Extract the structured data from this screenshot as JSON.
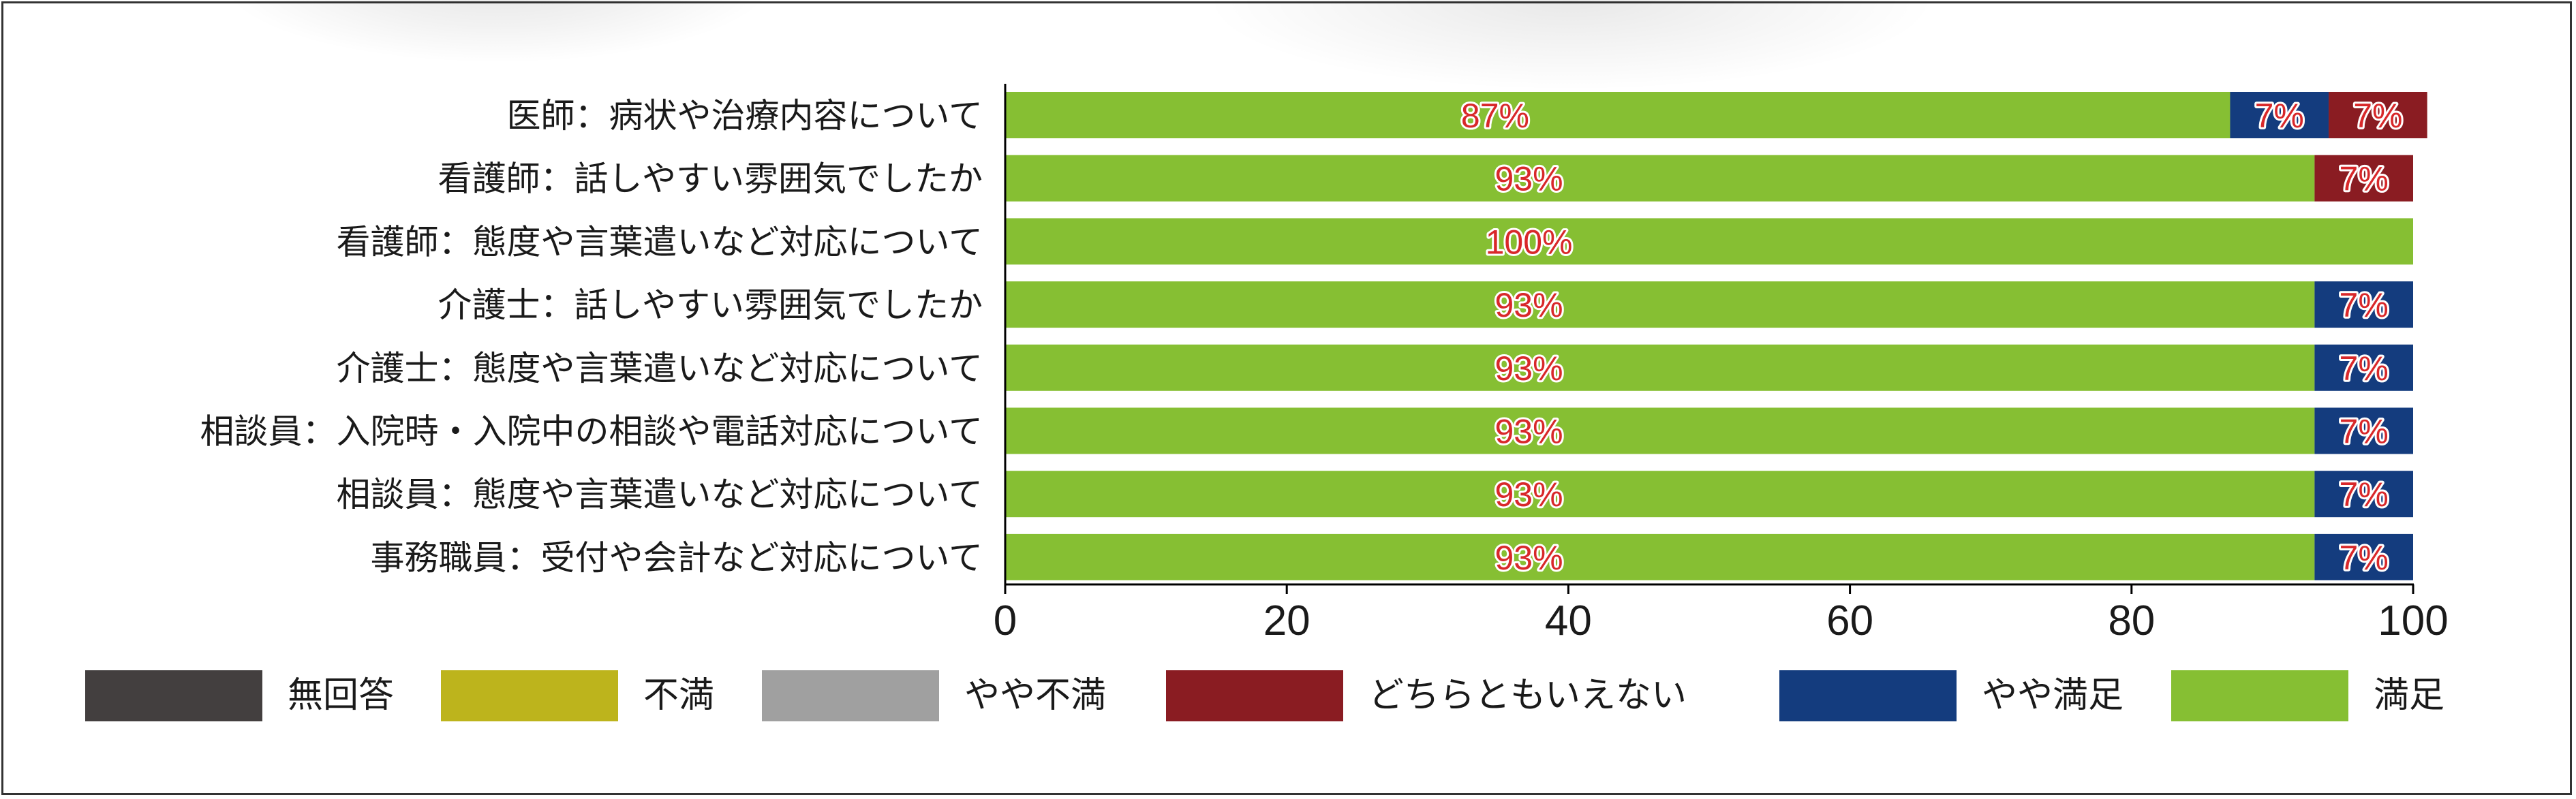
{
  "chart_data": {
    "type": "bar",
    "orientation": "horizontal",
    "stacked": true,
    "categories": [
      "医師：病状や治療内容について",
      "看護師：話しやすい雰囲気でしたか",
      "看護師：態度や言葉遣いなど対応について",
      "介護士：話しやすい雰囲気でしたか",
      "介護士：態度や言葉遣いなど対応について",
      "相談員：入院時・入院中の相談や電話対応について",
      "相談員：態度や言葉遣いなど対応について",
      "事務職員：受付や会計など対応について"
    ],
    "series": [
      {
        "name": "満足",
        "color": "#86bf33",
        "values": [
          87,
          93,
          100,
          93,
          93,
          93,
          93,
          93
        ],
        "labels": [
          "87%",
          "93%",
          "100%",
          "93%",
          "93%",
          "93%",
          "93%",
          "93%"
        ]
      },
      {
        "name": "やや満足",
        "color": "#143c7e",
        "values": [
          7,
          0,
          0,
          7,
          7,
          7,
          7,
          7
        ],
        "labels": [
          "7%",
          "",
          "",
          "7%",
          "7%",
          "7%",
          "7%",
          "7%"
        ]
      },
      {
        "name": "どちらともいえない",
        "color": "#8a1c22",
        "values": [
          7,
          7,
          0,
          0,
          0,
          0,
          0,
          0
        ],
        "labels": [
          "7%",
          "7%",
          "",
          "",
          "",
          "",
          "",
          ""
        ]
      },
      {
        "name": "やや不満",
        "color": "#a0a0a0",
        "values": [
          0,
          0,
          0,
          0,
          0,
          0,
          0,
          0
        ],
        "labels": [
          "",
          "",
          "",
          "",
          "",
          "",
          "",
          ""
        ]
      },
      {
        "name": "不満",
        "color": "#bdb41c",
        "values": [
          0,
          0,
          0,
          0,
          0,
          0,
          0,
          0
        ],
        "labels": [
          "",
          "",
          "",
          "",
          "",
          "",
          "",
          ""
        ]
      },
      {
        "name": "無回答",
        "color": "#433f3f",
        "values": [
          0,
          0,
          0,
          0,
          0,
          0,
          0,
          0
        ],
        "labels": [
          "",
          "",
          "",
          "",
          "",
          "",
          "",
          ""
        ]
      }
    ],
    "xlim": [
      0,
      100
    ],
    "xticks": [
      0,
      20,
      40,
      60,
      80,
      100
    ],
    "xtick_labels": [
      "0",
      "20",
      "40",
      "60",
      "80",
      "100"
    ],
    "grid": false,
    "legend_position": "bottom",
    "legend": [
      {
        "label": "無回答",
        "color": "#433f3f"
      },
      {
        "label": "不満",
        "color": "#bdb41c"
      },
      {
        "label": "やや不満",
        "color": "#a0a0a0"
      },
      {
        "label": "どちらともいえない",
        "color": "#8a1c22"
      },
      {
        "label": "やや満足",
        "color": "#143c7e"
      },
      {
        "label": "満足",
        "color": "#86bf33"
      }
    ]
  }
}
